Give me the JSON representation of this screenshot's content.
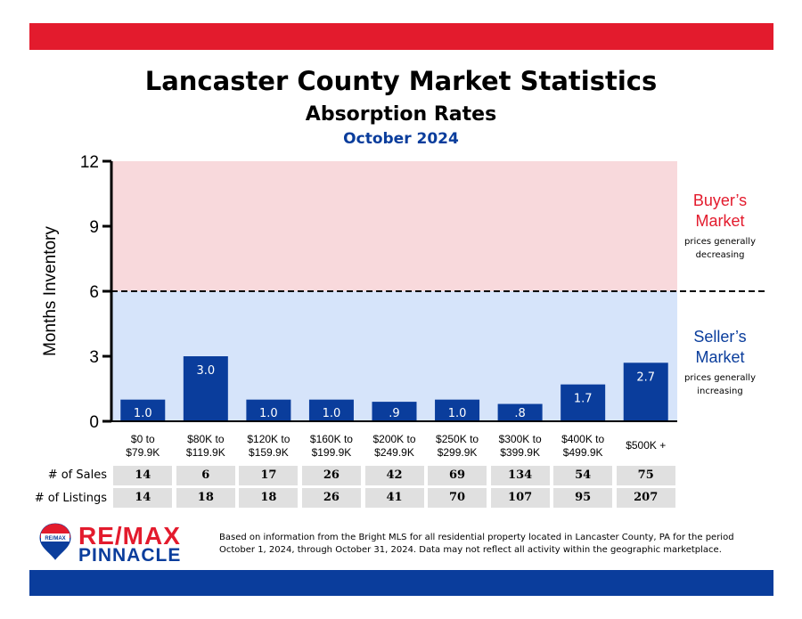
{
  "title": "Lancaster County Market Statistics",
  "subtitle": "Absorption Rates",
  "period": "October 2024",
  "chart_data": {
    "type": "bar",
    "ylabel": "Months Inventory",
    "xlabel": "",
    "ylim": [
      0,
      12
    ],
    "yticks": [
      "0",
      "3",
      "6",
      "9",
      "12"
    ],
    "threshold": 6,
    "categories": [
      [
        "$0 to",
        "$79.9K"
      ],
      [
        "$80K to",
        "$119.9K"
      ],
      [
        "$120K to",
        "$159.9K"
      ],
      [
        "$160K to",
        "$199.9K"
      ],
      [
        "$200K to",
        "$249.9K"
      ],
      [
        "$250K to",
        "$299.9K"
      ],
      [
        "$300K to",
        "$399.9K"
      ],
      [
        "$400K to",
        "$499.9K"
      ],
      [
        "$500K +"
      ]
    ],
    "values": [
      1.0,
      3.0,
      1.0,
      1.0,
      0.9,
      1.0,
      0.8,
      1.7,
      2.7
    ],
    "value_labels": [
      "1.0",
      "3.0",
      "1.0",
      "1.0",
      ".9",
      "1.0",
      ".8",
      "1.7",
      "2.7"
    ],
    "zones": {
      "buyer": {
        "title": "Buyer’s Market",
        "line1": "Buyer’s",
        "line2": "Market",
        "note1": "prices generally",
        "note2": "decreasing",
        "color": "#e31b2d"
      },
      "seller": {
        "title": "Seller’s Market",
        "line1": "Seller’s",
        "line2": "Market",
        "note1": "prices generally",
        "note2": "increasing",
        "color": "#0a3d9c"
      }
    },
    "colors": {
      "bar": "#0a3d9c",
      "buyer_bg": "#f8d9dc",
      "seller_bg": "#d6e4fa"
    }
  },
  "table": {
    "sales_label": "# of Sales",
    "listings_label": "# of Listings",
    "sales": [
      "14",
      "6",
      "17",
      "26",
      "42",
      "69",
      "134",
      "54",
      "75"
    ],
    "listings": [
      "14",
      "18",
      "18",
      "26",
      "41",
      "70",
      "107",
      "95",
      "207"
    ]
  },
  "branding": {
    "remax": "RE/MAX",
    "pinnacle": "PINNACLE",
    "balloon_text": "RE/MAX"
  },
  "footnote": {
    "line1": "Based on information from the Bright MLS for all residential property located in Lancaster County, PA for the period",
    "line2": "October 1, 2024, through October 31, 2024.  Data may not reflect all activity within the geographic marketplace."
  }
}
